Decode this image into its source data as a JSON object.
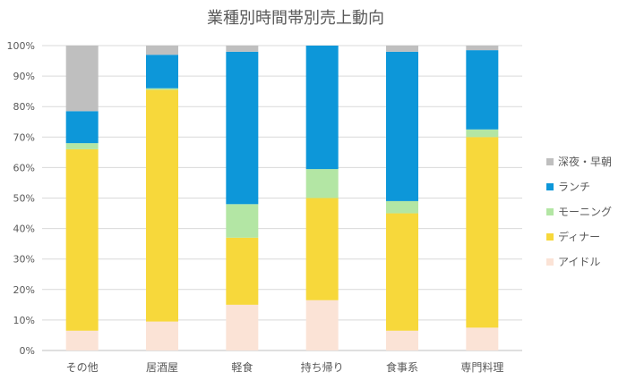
{
  "chart_data": {
    "type": "bar",
    "stacked": true,
    "percent_stacked": true,
    "title": "業種別時間帯別売上動向",
    "xlabel": "",
    "ylabel": "",
    "ylim": [
      0,
      100
    ],
    "y_ticks": [
      "0%",
      "10%",
      "20%",
      "30%",
      "40%",
      "50%",
      "60%",
      "70%",
      "80%",
      "90%",
      "100%"
    ],
    "grid": true,
    "legend_position": "right",
    "categories": [
      "その他",
      "居酒屋",
      "軽食",
      "持ち帰り",
      "食事系",
      "専門料理"
    ],
    "series": [
      {
        "name": "アイドル",
        "color": "#fbe3d6",
        "values": [
          6.5,
          9.5,
          15,
          16.5,
          6.5,
          7.5
        ]
      },
      {
        "name": "ディナー",
        "color": "#f7d83b",
        "values": [
          59.5,
          76,
          22,
          33.5,
          38.5,
          62.5
        ]
      },
      {
        "name": "モーニング",
        "color": "#b3e6a4",
        "values": [
          2,
          0.5,
          11,
          9.5,
          4,
          2.5
        ]
      },
      {
        "name": "ランチ",
        "color": "#0d97d9",
        "values": [
          10.5,
          11,
          50,
          40.5,
          49,
          26
        ]
      },
      {
        "name": "深夜・早朝",
        "color": "#bfbfbf",
        "values": [
          21.5,
          3,
          2,
          0,
          2,
          1.5
        ]
      }
    ],
    "legend_order": [
      "深夜・早朝",
      "ランチ",
      "モーニング",
      "ディナー",
      "アイドル"
    ]
  }
}
